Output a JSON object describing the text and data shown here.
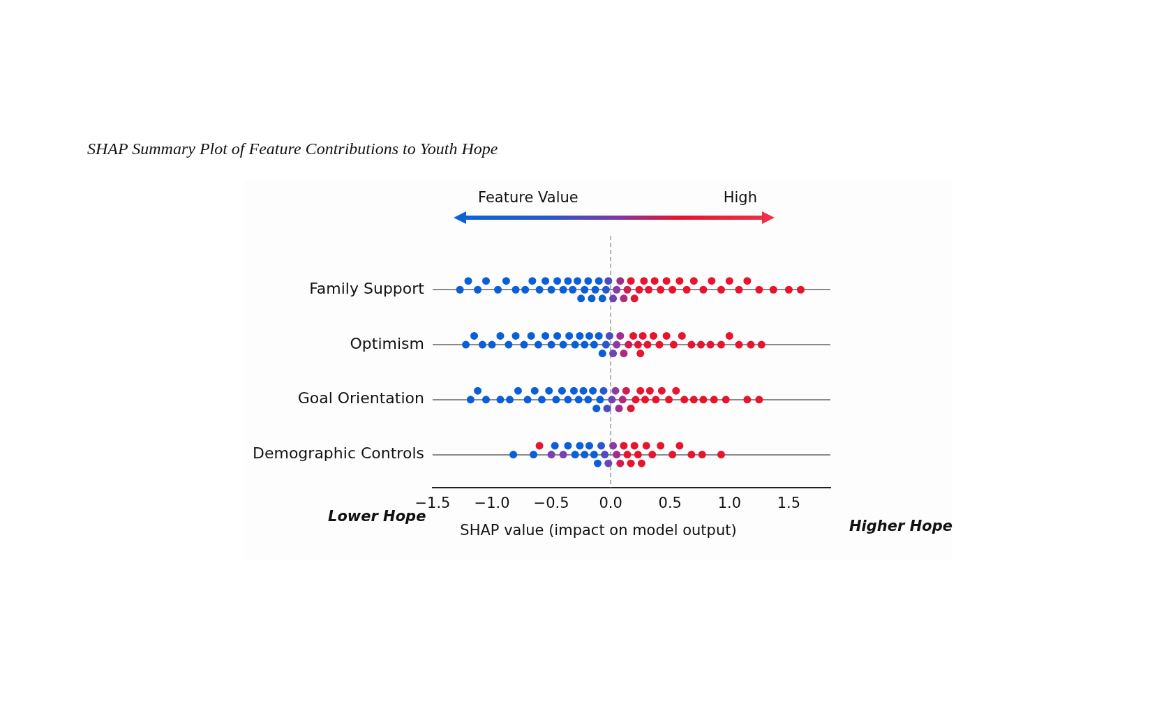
{
  "chart_data": {
    "type": "scatter",
    "orientation": "horizontal",
    "title": "SHAP Summary Plot of Feature Contributions to Youth Hope",
    "xlabel": "SHAP value (impact on model output)",
    "clabel": "Feature Value",
    "annotations": [
      "High",
      "Lower Hope",
      "Higher Hope"
    ],
    "categories": [
      "Family Support",
      "Optimism",
      "Goal Orientation",
      "Demographic Controls"
    ],
    "xlim": [
      -1.5,
      1.85
    ],
    "xticks": [
      {
        "value": -1.5,
        "label": "−1.5"
      },
      {
        "value": -1,
        "label": "−1.0"
      },
      {
        "value": -0.5,
        "label": "−0.5"
      },
      {
        "value": 0,
        "label": "0.0"
      },
      {
        "value": 0.5,
        "label": "0.5"
      },
      {
        "value": 1,
        "label": "1.0"
      },
      {
        "value": 1.5,
        "label": "1.5"
      }
    ],
    "grid": "y",
    "legend": false,
    "marker": "circle",
    "ref_lines": [
      {
        "axis": "x",
        "value": 0,
        "color": "#999999",
        "line_style": "dashed"
      }
    ],
    "series": [
      {
        "x": [
          "Family Support",
          "Family Support",
          "Family Support",
          "Family Support",
          "Family Support",
          "Family Support",
          "Family Support",
          "Family Support",
          "Family Support",
          "Family Support",
          "Family Support",
          "Family Support",
          "Family Support",
          "Family Support",
          "Family Support",
          "Family Support",
          "Family Support",
          "Family Support",
          "Family Support",
          "Family Support",
          "Family Support",
          "Family Support",
          "Family Support",
          "Family Support",
          "Family Support",
          "Family Support",
          "Family Support",
          "Family Support",
          "Family Support",
          "Family Support",
          "Family Support",
          "Family Support",
          "Family Support",
          "Family Support",
          "Family Support",
          "Family Support",
          "Family Support",
          "Family Support",
          "Family Support",
          "Family Support",
          "Family Support",
          "Family Support",
          "Family Support",
          "Family Support",
          "Family Support",
          "Family Support",
          "Family Support",
          "Family Support",
          "Family Support",
          "Family Support",
          "Family Support",
          "Family Support",
          "Family Support"
        ],
        "values": [
          -1.27,
          -1.2,
          -1.12,
          -1.05,
          -0.95,
          -0.88,
          -0.8,
          -0.72,
          -0.66,
          -0.6,
          -0.55,
          -0.5,
          -0.45,
          -0.4,
          -0.36,
          -0.32,
          -0.28,
          -0.25,
          -0.22,
          -0.19,
          -0.16,
          -0.13,
          -0.1,
          -0.07,
          -0.04,
          -0.02,
          0.02,
          0.05,
          0.08,
          0.11,
          0.14,
          0.17,
          0.2,
          0.24,
          0.28,
          0.32,
          0.37,
          0.42,
          0.47,
          0.52,
          0.58,
          0.64,
          0.7,
          0.78,
          0.85,
          0.93,
          1.0,
          1.08,
          1.15,
          1.25,
          1.37,
          1.5,
          1.6
        ],
        "colors": [
          "#0a5fd8",
          "#0a5fd8",
          "#0a5fd8",
          "#0a5fd8",
          "#0a5fd8",
          "#0a5fd8",
          "#0a5fd8",
          "#0a5fd8",
          "#0a5fd8",
          "#0a5fd8",
          "#0a5fd8",
          "#0a5fd8",
          "#0a5fd8",
          "#0a5fd8",
          "#0a5fd8",
          "#0a5fd8",
          "#0a5fd8",
          "#0a5fd8",
          "#0a5fd8",
          "#0a5fd8",
          "#0a5fd8",
          "#0a5fd8",
          "#0a5fd8",
          "#0a5fd8",
          "#2a58cc",
          "#4a4cc0",
          "#6a44b8",
          "#8a3aa6",
          "#a02c8c",
          "#b02a7e",
          "#d01c50",
          "#e8142e",
          "#e8142e",
          "#e8142e",
          "#e8142e",
          "#e8142e",
          "#e8142e",
          "#e8142e",
          "#e8142e",
          "#e8142e",
          "#e8142e",
          "#e8142e",
          "#e8142e",
          "#e8142e",
          "#e8142e",
          "#e8142e",
          "#e8142e",
          "#e8142e",
          "#e8142e",
          "#e8142e",
          "#e8142e",
          "#e8142e",
          "#e8142e"
        ]
      },
      {
        "x": [
          "Optimism",
          "Optimism",
          "Optimism",
          "Optimism",
          "Optimism",
          "Optimism",
          "Optimism",
          "Optimism",
          "Optimism",
          "Optimism",
          "Optimism",
          "Optimism",
          "Optimism",
          "Optimism",
          "Optimism",
          "Optimism",
          "Optimism",
          "Optimism",
          "Optimism",
          "Optimism",
          "Optimism",
          "Optimism",
          "Optimism",
          "Optimism",
          "Optimism",
          "Optimism",
          "Optimism",
          "Optimism",
          "Optimism",
          "Optimism",
          "Optimism",
          "Optimism",
          "Optimism",
          "Optimism",
          "Optimism",
          "Optimism",
          "Optimism",
          "Optimism",
          "Optimism",
          "Optimism",
          "Optimism",
          "Optimism",
          "Optimism",
          "Optimism",
          "Optimism",
          "Optimism",
          "Optimism"
        ],
        "values": [
          -1.22,
          -1.15,
          -1.08,
          -1.0,
          -0.93,
          -0.86,
          -0.8,
          -0.73,
          -0.67,
          -0.61,
          -0.55,
          -0.5,
          -0.45,
          -0.4,
          -0.35,
          -0.3,
          -0.26,
          -0.22,
          -0.18,
          -0.14,
          -0.1,
          -0.07,
          -0.04,
          -0.01,
          0.02,
          0.05,
          0.08,
          0.11,
          0.15,
          0.19,
          0.23,
          0.25,
          0.27,
          0.31,
          0.36,
          0.41,
          0.47,
          0.53,
          0.6,
          0.68,
          0.76,
          0.84,
          0.93,
          1.0,
          1.08,
          1.18,
          1.27
        ],
        "colors": [
          "#0a5fd8",
          "#0a5fd8",
          "#0a5fd8",
          "#0a5fd8",
          "#0a5fd8",
          "#0a5fd8",
          "#0a5fd8",
          "#0a5fd8",
          "#0a5fd8",
          "#0a5fd8",
          "#0a5fd8",
          "#0a5fd8",
          "#0a5fd8",
          "#0a5fd8",
          "#0a5fd8",
          "#0a5fd8",
          "#0a5fd8",
          "#0a5fd8",
          "#0a5fd8",
          "#0a5fd8",
          "#0a5fd8",
          "#0a5fd8",
          "#2a58cc",
          "#4a4cc0",
          "#6a44b8",
          "#8a3aa6",
          "#a02c8c",
          "#b02a7e",
          "#d01c50",
          "#e8142e",
          "#e8142e",
          "#e8142e",
          "#e8142e",
          "#e8142e",
          "#e8142e",
          "#e8142e",
          "#e8142e",
          "#e8142e",
          "#e8142e",
          "#e8142e",
          "#e8142e",
          "#e8142e",
          "#e8142e",
          "#e8142e",
          "#e8142e",
          "#e8142e",
          "#e8142e"
        ]
      },
      {
        "x": [
          "Goal Orientation",
          "Goal Orientation",
          "Goal Orientation",
          "Goal Orientation",
          "Goal Orientation",
          "Goal Orientation",
          "Goal Orientation",
          "Goal Orientation",
          "Goal Orientation",
          "Goal Orientation",
          "Goal Orientation",
          "Goal Orientation",
          "Goal Orientation",
          "Goal Orientation",
          "Goal Orientation",
          "Goal Orientation",
          "Goal Orientation",
          "Goal Orientation",
          "Goal Orientation",
          "Goal Orientation",
          "Goal Orientation",
          "Goal Orientation",
          "Goal Orientation",
          "Goal Orientation",
          "Goal Orientation",
          "Goal Orientation",
          "Goal Orientation",
          "Goal Orientation",
          "Goal Orientation",
          "Goal Orientation",
          "Goal Orientation",
          "Goal Orientation",
          "Goal Orientation",
          "Goal Orientation",
          "Goal Orientation",
          "Goal Orientation",
          "Goal Orientation",
          "Goal Orientation",
          "Goal Orientation",
          "Goal Orientation",
          "Goal Orientation",
          "Goal Orientation",
          "Goal Orientation"
        ],
        "values": [
          -1.18,
          -1.12,
          -1.05,
          -0.93,
          -0.85,
          -0.78,
          -0.7,
          -0.64,
          -0.58,
          -0.52,
          -0.46,
          -0.41,
          -0.36,
          -0.31,
          -0.27,
          -0.23,
          -0.19,
          -0.15,
          -0.12,
          -0.09,
          -0.06,
          -0.03,
          0.01,
          0.04,
          0.07,
          0.1,
          0.13,
          0.17,
          0.21,
          0.25,
          0.29,
          0.33,
          0.38,
          0.43,
          0.49,
          0.55,
          0.62,
          0.7,
          0.78,
          0.87,
          0.97,
          1.15,
          1.25
        ],
        "colors": [
          "#0a5fd8",
          "#0a5fd8",
          "#0a5fd8",
          "#0a5fd8",
          "#0a5fd8",
          "#0a5fd8",
          "#0a5fd8",
          "#0a5fd8",
          "#0a5fd8",
          "#0a5fd8",
          "#0a5fd8",
          "#0a5fd8",
          "#0a5fd8",
          "#0a5fd8",
          "#0a5fd8",
          "#0a5fd8",
          "#0a5fd8",
          "#0a5fd8",
          "#0a5fd8",
          "#0a5fd8",
          "#2a58cc",
          "#4a4cc0",
          "#6a44b8",
          "#8a3aa6",
          "#a02c8c",
          "#b02a7e",
          "#d01c50",
          "#e8142e",
          "#e8142e",
          "#e8142e",
          "#e8142e",
          "#e8142e",
          "#e8142e",
          "#e8142e",
          "#e8142e",
          "#e8142e",
          "#e8142e",
          "#e8142e",
          "#e8142e",
          "#e8142e",
          "#e8142e",
          "#e8142e",
          "#e8142e"
        ]
      },
      {
        "x": [
          "Demographic Controls",
          "Demographic Controls",
          "Demographic Controls",
          "Demographic Controls",
          "Demographic Controls",
          "Demographic Controls",
          "Demographic Controls",
          "Demographic Controls",
          "Demographic Controls",
          "Demographic Controls",
          "Demographic Controls",
          "Demographic Controls",
          "Demographic Controls",
          "Demographic Controls",
          "Demographic Controls",
          "Demographic Controls",
          "Demographic Controls",
          "Demographic Controls",
          "Demographic Controls",
          "Demographic Controls",
          "Demographic Controls",
          "Demographic Controls",
          "Demographic Controls",
          "Demographic Controls",
          "Demographic Controls",
          "Demographic Controls",
          "Demographic Controls",
          "Demographic Controls",
          "Demographic Controls",
          "Demographic Controls",
          "Demographic Controls",
          "Demographic Controls",
          "Demographic Controls"
        ],
        "values": [
          -0.82,
          -0.65,
          -0.6,
          -0.5,
          -0.47,
          -0.4,
          -0.36,
          -0.3,
          -0.26,
          -0.22,
          -0.18,
          -0.14,
          -0.11,
          -0.08,
          -0.05,
          -0.02,
          0.02,
          0.05,
          0.08,
          0.11,
          0.14,
          0.17,
          0.2,
          0.23,
          0.26,
          0.3,
          0.35,
          0.42,
          0.52,
          0.58,
          0.68,
          0.77,
          0.93
        ],
        "colors": [
          "#0a5fd8",
          "#0a5fd8",
          "#e8142e",
          "#7a40b0",
          "#0a5fd8",
          "#7a40b0",
          "#0a5fd8",
          "#0a5fd8",
          "#0a5fd8",
          "#0a5fd8",
          "#0a5fd8",
          "#0a5fd8",
          "#0a5fd8",
          "#2a58cc",
          "#4a4cc0",
          "#6a44b8",
          "#8a3aa6",
          "#a02c8c",
          "#d01c50",
          "#e8142e",
          "#e8142e",
          "#e8142e",
          "#e8142e",
          "#e8142e",
          "#e8142e",
          "#e8142e",
          "#e8142e",
          "#e8142e",
          "#e8142e",
          "#e8142e",
          "#e8142e",
          "#e8142e",
          "#e8142e"
        ]
      }
    ]
  }
}
